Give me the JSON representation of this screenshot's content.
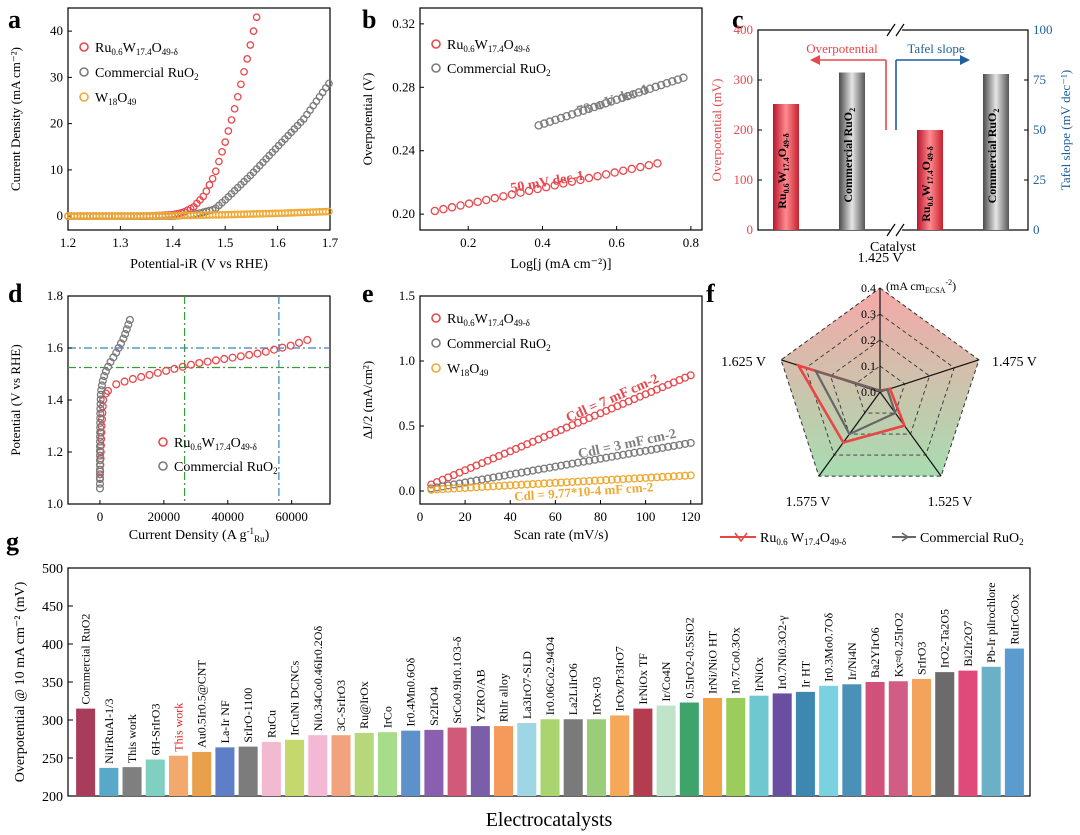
{
  "chart_data": [
    {
      "type": "line",
      "panel": "a",
      "xlabel": "Potential-iR (V vs RHE)",
      "ylabel": "Current Density (mA cm⁻²)",
      "xlim": [
        1.2,
        1.7
      ],
      "ylim": [
        -3,
        45
      ],
      "xticks": [
        "1.2",
        "1.3",
        "1.4",
        "1.5",
        "1.6",
        "1.7"
      ],
      "yticks": [
        "0",
        "10",
        "20",
        "30",
        "40"
      ],
      "legend_position": "top-left",
      "series": [
        {
          "name": "Ru0.6W17.4O49-δ",
          "color": "#e8474c",
          "x": [
            1.2,
            1.25,
            1.3,
            1.35,
            1.4,
            1.42,
            1.44,
            1.46,
            1.48,
            1.5,
            1.52,
            1.54,
            1.56
          ],
          "y": [
            0,
            0,
            0,
            0,
            0.3,
            0.8,
            2.0,
            4.5,
            9.0,
            16.0,
            24.0,
            33.0,
            43.0
          ]
        },
        {
          "name": "Commercial RuO2",
          "color": "#7a7a7a",
          "x": [
            1.2,
            1.3,
            1.4,
            1.44,
            1.48,
            1.5,
            1.55,
            1.6,
            1.65,
            1.7
          ],
          "y": [
            0,
            0,
            0,
            0.3,
            1.5,
            3.5,
            9.0,
            15.0,
            21.0,
            29.0
          ]
        },
        {
          "name": "W18O49",
          "color": "#f0a830",
          "x": [
            1.2,
            1.3,
            1.4,
            1.5,
            1.6,
            1.7
          ],
          "y": [
            0,
            0,
            0.1,
            0.3,
            0.6,
            1.0
          ]
        }
      ]
    },
    {
      "type": "scatter",
      "panel": "b",
      "xlabel": "Log[j (mA cm⁻²)]",
      "ylabel": "Overpotential (V)",
      "xlim": [
        0.07,
        0.83
      ],
      "ylim": [
        0.19,
        0.33
      ],
      "xticks": [
        "0.2",
        "0.4",
        "0.6",
        "0.8"
      ],
      "yticks": [
        "0.20",
        "0.24",
        "0.28",
        "0.32"
      ],
      "legend_position": "top-left",
      "annotations": [
        "78 mV dec-1",
        "50 mV dec-1"
      ],
      "series": [
        {
          "name": "Ru0.6W17.4O49-δ",
          "color": "#e8474c",
          "x": [
            0.11,
            0.71
          ],
          "y": [
            0.202,
            0.232
          ]
        },
        {
          "name": "Commercial RuO2",
          "color": "#7a7a7a",
          "x": [
            0.39,
            0.78
          ],
          "y": [
            0.256,
            0.286
          ]
        }
      ]
    },
    {
      "type": "bar",
      "panel": "c",
      "xlabel": "Catalyst",
      "ylabel_left": "Overpotential (mV)",
      "ylabel_right": "Tafel slope (mV dec⁻¹)",
      "ylim_left": [
        0,
        400
      ],
      "ylim_right": [
        0,
        100
      ],
      "yticks_left": [
        "0",
        "100",
        "200",
        "300",
        "400"
      ],
      "yticks_right": [
        "0",
        "25",
        "50",
        "75",
        "100"
      ],
      "arrow_labels": [
        "Overpotential",
        "Tafel slope"
      ],
      "bars": [
        {
          "label": "Ru0.6W17.4O49-δ",
          "group": "Overpotential",
          "value": 252,
          "color": "#e8474c"
        },
        {
          "label": "Commercial RuO2",
          "group": "Overpotential",
          "value": 315,
          "color": "#8a8a8a"
        },
        {
          "label": "Ru0.6W17.4O49-δ",
          "group": "Tafel slope",
          "value": 50,
          "color": "#e8474c"
        },
        {
          "label": "Commercial RuO2",
          "group": "Tafel slope",
          "value": 78,
          "color": "#8a8a8a"
        }
      ]
    },
    {
      "type": "scatter",
      "panel": "d",
      "xlabel": "Current Density (A g⁻¹Ru)",
      "ylabel": "Potential (V vs RHE)",
      "xlim": [
        -10000,
        72000
      ],
      "ylim": [
        1.0,
        1.8
      ],
      "xticks": [
        "0",
        "20000",
        "40000",
        "60000"
      ],
      "yticks": [
        "1.0",
        "1.2",
        "1.4",
        "1.6",
        "1.8"
      ],
      "reference_lines": {
        "vertical": [
          26500,
          56000
        ],
        "horizontal": [
          1.525,
          1.6
        ]
      },
      "legend_position": "bottom-right",
      "series": [
        {
          "name": "Ru0.6W17.4O49-δ",
          "color": "#e8474c",
          "x": [
            0,
            500,
            1000,
            2000,
            5000,
            10000,
            20000,
            30000,
            40000,
            50000,
            60000,
            67000
          ],
          "y": [
            1.1,
            1.3,
            1.4,
            1.43,
            1.46,
            1.48,
            1.51,
            1.54,
            1.56,
            1.58,
            1.61,
            1.64
          ]
        },
        {
          "name": "Commercial RuO2",
          "color": "#7a7a7a",
          "x": [
            0,
            0,
            100,
            300,
            800,
            1500,
            3000,
            5000,
            7500,
            9700
          ],
          "y": [
            1.06,
            1.2,
            1.35,
            1.43,
            1.47,
            1.5,
            1.54,
            1.58,
            1.64,
            1.72
          ]
        }
      ]
    },
    {
      "type": "scatter",
      "panel": "e",
      "xlabel": "Scan rate (mV/s)",
      "ylabel": "ΔJ/2 (mA/cm²)",
      "xlim": [
        0,
        125
      ],
      "ylim": [
        -0.1,
        1.5
      ],
      "xticks": [
        "0",
        "20",
        "40",
        "60",
        "80",
        "100",
        "120"
      ],
      "yticks": [
        "0.0",
        "0.5",
        "1.0",
        "1.5"
      ],
      "legend_position": "top-left",
      "annotations": [
        "Cdl = 7 mF cm-2",
        "Cdl = 3 mF cm-2",
        "Cdl = 9.77*10-4 mF cm-2"
      ],
      "series": [
        {
          "name": "Ru0.6W17.4O49-δ",
          "color": "#e8474c",
          "x": [
            5,
            120
          ],
          "y": [
            0.05,
            0.89
          ]
        },
        {
          "name": "Commercial RuO2",
          "color": "#7a7a7a",
          "x": [
            5,
            120
          ],
          "y": [
            0.02,
            0.37
          ]
        },
        {
          "name": "W18O49",
          "color": "#f0a830",
          "x": [
            5,
            120
          ],
          "y": [
            0.01,
            0.12
          ]
        }
      ]
    },
    {
      "type": "radar",
      "panel": "f",
      "axes": [
        "1.425 V",
        "1.475 V",
        "1.525 V",
        "1.575 V",
        "1.625 V"
      ],
      "rlabels": [
        "0.0",
        "0.1",
        "0.2",
        "0.3",
        "0.4"
      ],
      "unit_label": "(mA cm",
      "unit_sub": "ECSA",
      "unit_sup": "-2",
      "unit_close": ")",
      "rmax": 0.4,
      "series": [
        {
          "name": "Ru0.6W17.4O49-δ",
          "color": "#e84545",
          "values": [
            0.005,
            0.04,
            0.16,
            0.24,
            0.33
          ]
        },
        {
          "name": "Commercial RuO2",
          "color": "#666666",
          "values": [
            0.005,
            0.03,
            0.1,
            0.2,
            0.26
          ]
        }
      ]
    },
    {
      "type": "bar",
      "panel": "g",
      "xlabel": "Electrocatalysts",
      "ylabel": "Overpotential @ 10 mA cm⁻² (mV)",
      "ylim": [
        200,
        500
      ],
      "yticks": [
        "200",
        "250",
        "300",
        "350",
        "400",
        "450",
        "500"
      ],
      "categories": [
        "Commercial RuO2",
        "NiIrRuAl-1/3",
        "This work",
        "6H-SrIrO3",
        "This work",
        "Au0.5Ir0.5@CNT",
        "La-Ir NF",
        "SrIrO-1100",
        "RuCu",
        "IrCuNi DCNCs",
        "Ni0.34Co0.46Ir0.2Oδ",
        "3C-SrIrO3",
        "Ru@IrOx",
        "IrCo",
        "Ir0.4Mn0.6Oδ",
        "Sr2IrO4",
        "SrCo0.9Ir0.1O3-δ",
        "YZRO/AB",
        "RhIr alloy",
        "La3IrO7-SLD",
        "Ir0.06Co2.94O4",
        "La2LiIrO6",
        "IrOx-03",
        "IrOx/Pr3IrO7",
        "IrNiOx TF",
        "Ir/Co4N",
        "0.5IrO2-0.5SiO2",
        "IrNi/NiO HT",
        "Ir0.7Co0.3Ox",
        "IrNiOx",
        "Ir0.7Ni0.3O2-γ",
        "Ir HT",
        "Ir0.3Mo0.7Oδ",
        "Ir/Ni4N",
        "Ba2YIrO6",
        "Kx≈0.25IrO2",
        "SrIrO3",
        "IrO2-Ta2O5",
        "Bi2Ir2O7",
        "Pb-Ir pilrochlore",
        "RuIrCoOx"
      ],
      "values": [
        315,
        237,
        238,
        248,
        253,
        258,
        264,
        265,
        271,
        274,
        280,
        280,
        283,
        284,
        286,
        287,
        290,
        292,
        292,
        296,
        301,
        301,
        301,
        306,
        315,
        319,
        323,
        329,
        329,
        332,
        335,
        337,
        345,
        347,
        350,
        351,
        354,
        363,
        365,
        370,
        394
      ]
    }
  ],
  "legends": {
    "a": {
      "s1_main": "Ru",
      "s1_sub1": "0.6",
      "s1_w": "W",
      "s1_sub2": "17.4",
      "s1_o": "O",
      "s1_sub3": "49-δ",
      "s2_main": "Commercial RuO",
      "s2_sub": "2",
      "s3_main": "W",
      "s3_sub1": "18",
      "s3_o": "O",
      "s3_sub2": "49"
    },
    "f": {
      "s1_main": "Ru",
      "s1_sub1": "0.6",
      "s1_w": " W",
      "s1_sub2": "17.4",
      "s1_o": "O",
      "s1_sub3": "49-δ",
      "s2": "Commercial RuO",
      "s2_sub": "2"
    }
  },
  "panel_labels": [
    "a",
    "b",
    "c",
    "d",
    "e",
    "f",
    "g"
  ],
  "colors": {
    "red": "#e8474c",
    "gray": "#7a7a7a",
    "orange": "#f0a830",
    "blue": "#1f5f9f",
    "green_dash": "#3a9a3a",
    "blue_dash": "#3a7fc0"
  }
}
